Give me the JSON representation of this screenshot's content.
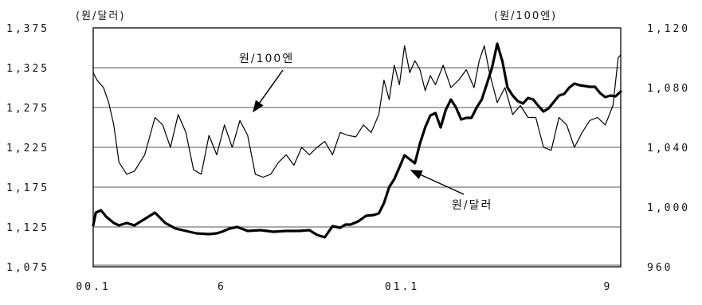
{
  "chart_data": {
    "type": "line",
    "title": "",
    "left_axis": {
      "unit_label": "(원/달러)",
      "ylim": [
        1075,
        1375
      ],
      "ticks": [
        "1,375",
        "1,325",
        "1,275",
        "1,225",
        "1,175",
        "1,125",
        "1,075"
      ],
      "tick_values": [
        1375,
        1325,
        1275,
        1225,
        1175,
        1125,
        1075
      ]
    },
    "right_axis": {
      "unit_label": "(원/100엔)",
      "ylim": [
        960,
        1120
      ],
      "ticks": [
        "1,120",
        "1,080",
        "1,040",
        "1,000",
        "960"
      ],
      "tick_values": [
        1120,
        1080,
        1040,
        1000,
        960
      ]
    },
    "x_axis": {
      "xlim": [
        0,
        20.5
      ],
      "ticks": [
        "00.1",
        "6",
        "01.1",
        "9"
      ],
      "tick_positions": [
        0,
        5,
        12,
        20
      ]
    },
    "grid": true,
    "series": [
      {
        "name": "원/달러",
        "axis": "left",
        "style": "thick",
        "x": [
          0,
          0.1,
          0.3,
          0.5,
          0.8,
          1,
          1.3,
          1.6,
          1.8,
          2,
          2.4,
          2.8,
          3.2,
          3.6,
          4,
          4.5,
          4.8,
          5,
          5.3,
          5.6,
          6,
          6.5,
          7,
          7.5,
          8,
          8.4,
          8.7,
          9,
          9.3,
          9.6,
          9.8,
          10,
          10.3,
          10.6,
          10.9,
          11.1,
          11.3,
          11.5,
          11.7,
          11.9,
          12.1,
          12.3,
          12.5,
          12.7,
          12.9,
          13.1,
          13.3,
          13.5,
          13.7,
          13.9,
          14.1,
          14.3,
          14.5,
          14.7,
          14.9,
          15.1,
          15.3,
          15.5,
          15.7,
          15.9,
          16.1,
          16.3,
          16.5,
          16.7,
          16.9,
          17.1,
          17.3,
          17.5,
          17.7,
          17.9,
          18.1,
          18.3,
          18.5,
          18.7,
          18.9,
          19.1,
          19.3,
          19.5,
          19.7,
          19.9,
          20.1,
          20.3,
          20.5
        ],
        "values": [
          1127,
          1143,
          1146,
          1138,
          1130,
          1127,
          1130,
          1127,
          1131,
          1135,
          1143,
          1130,
          1123,
          1120,
          1117,
          1116,
          1117,
          1119,
          1123,
          1125,
          1120,
          1121,
          1119,
          1120,
          1120,
          1121,
          1115,
          1112,
          1126,
          1124,
          1128,
          1128,
          1132,
          1139,
          1140,
          1142,
          1155,
          1175,
          1185,
          1200,
          1215,
          1210,
          1205,
          1230,
          1250,
          1265,
          1268,
          1250,
          1272,
          1285,
          1275,
          1260,
          1262,
          1262,
          1275,
          1285,
          1305,
          1325,
          1355,
          1333,
          1300,
          1290,
          1283,
          1280,
          1287,
          1285,
          1277,
          1270,
          1274,
          1282,
          1290,
          1292,
          1300,
          1305,
          1303,
          1302,
          1301,
          1301,
          1293,
          1288,
          1290,
          1289,
          1295
        ]
      },
      {
        "name": "원/100엔",
        "axis": "right",
        "style": "thin",
        "x": [
          0,
          0.15,
          0.4,
          0.6,
          0.8,
          1,
          1.3,
          1.6,
          2,
          2.4,
          2.7,
          3,
          3.3,
          3.6,
          3.9,
          4.2,
          4.5,
          4.8,
          5.1,
          5.4,
          5.7,
          6,
          6.3,
          6.6,
          6.9,
          7.2,
          7.5,
          7.8,
          8.1,
          8.4,
          8.7,
          9,
          9.3,
          9.6,
          9.9,
          10.2,
          10.5,
          10.8,
          11.1,
          11.3,
          11.5,
          11.7,
          11.9,
          12.1,
          12.3,
          12.5,
          12.7,
          12.9,
          13.1,
          13.3,
          13.6,
          13.9,
          14.2,
          14.5,
          14.8,
          15,
          15.2,
          15.4,
          15.7,
          16,
          16.3,
          16.6,
          16.9,
          17.2,
          17.5,
          17.8,
          18.1,
          18.4,
          18.7,
          19,
          19.3,
          19.6,
          19.9,
          20.2,
          20.4,
          20.5
        ],
        "values": [
          1090,
          1085,
          1080,
          1070,
          1055,
          1030,
          1022,
          1024,
          1035,
          1060,
          1055,
          1040,
          1062,
          1050,
          1025,
          1022,
          1048,
          1035,
          1055,
          1040,
          1058,
          1048,
          1022,
          1020,
          1022,
          1030,
          1035,
          1028,
          1040,
          1035,
          1040,
          1044,
          1035,
          1050,
          1048,
          1047,
          1055,
          1050,
          1062,
          1085,
          1072,
          1095,
          1082,
          1108,
          1090,
          1098,
          1092,
          1078,
          1088,
          1082,
          1095,
          1080,
          1085,
          1092,
          1080,
          1098,
          1108,
          1090,
          1070,
          1080,
          1062,
          1068,
          1060,
          1060,
          1040,
          1038,
          1060,
          1055,
          1040,
          1050,
          1058,
          1060,
          1055,
          1068,
          1100,
          1102
        ]
      }
    ],
    "annotations": [
      {
        "text": "원/100엔",
        "series": "원/100엔"
      },
      {
        "text": "원/달러",
        "series": "원/달러"
      }
    ]
  }
}
